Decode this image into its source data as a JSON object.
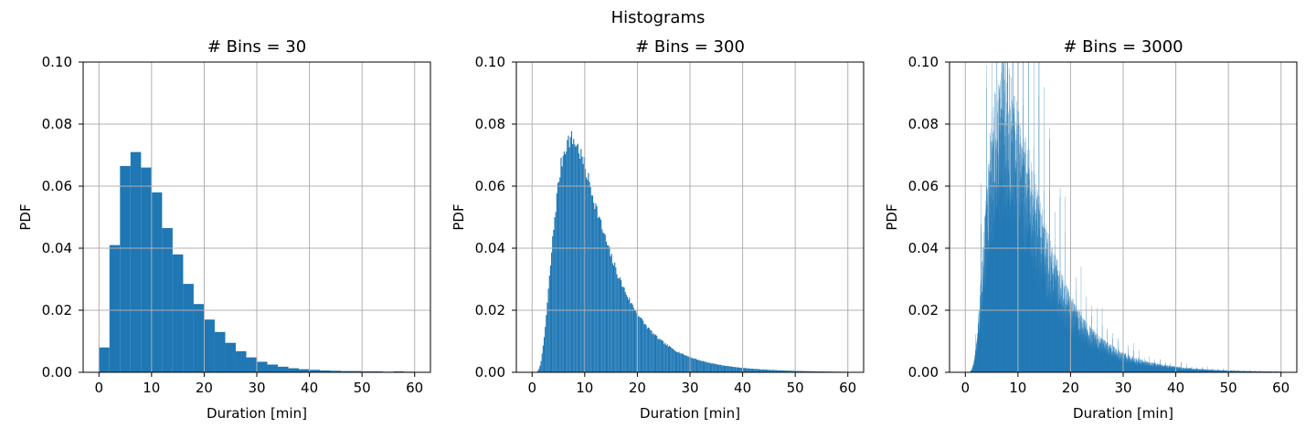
{
  "figure": {
    "suptitle": "Histograms"
  },
  "chart_data": [
    {
      "type": "bar",
      "title": "# Bins = 30",
      "xlabel": "Duration [min]",
      "ylabel": "PDF",
      "xlim": [
        -3,
        63
      ],
      "ylim": [
        0,
        0.1
      ],
      "xticks": [
        0,
        10,
        20,
        30,
        40,
        50,
        60
      ],
      "yticks": [
        "0.00",
        "0.02",
        "0.04",
        "0.06",
        "0.08",
        "0.10"
      ],
      "grid": true,
      "color": "#1f77b4",
      "bins": 30,
      "range": [
        0,
        60
      ],
      "values": [
        0.008,
        0.041,
        0.0665,
        0.071,
        0.066,
        0.058,
        0.0465,
        0.038,
        0.0285,
        0.022,
        0.017,
        0.013,
        0.0095,
        0.0068,
        0.0048,
        0.0034,
        0.0025,
        0.0018,
        0.0013,
        0.001,
        0.0008,
        0.0006,
        0.0005,
        0.0004,
        0.0004,
        0.0003,
        0.0003,
        0.0002,
        0.0003,
        0.0002
      ]
    },
    {
      "type": "bar",
      "title": "# Bins = 300",
      "xlabel": "Duration [min]",
      "ylabel": "PDF",
      "xlim": [
        -3,
        63
      ],
      "ylim": [
        0,
        0.1
      ],
      "xticks": [
        0,
        10,
        20,
        30,
        40,
        50,
        60
      ],
      "yticks": [
        "0.00",
        "0.02",
        "0.04",
        "0.06",
        "0.08",
        "0.10"
      ],
      "grid": true,
      "color": "#1f77b4",
      "bins": 300,
      "range": [
        0,
        60
      ],
      "seed": 7,
      "shape": "lognormal",
      "shape_mu": 2.36,
      "shape_sigma": 0.6,
      "noise": 0.04
    },
    {
      "type": "bar",
      "title": "# Bins = 3000",
      "xlabel": "Duration [min]",
      "ylabel": "PDF",
      "xlim": [
        -3,
        63
      ],
      "ylim": [
        0,
        0.1
      ],
      "xticks": [
        0,
        10,
        20,
        30,
        40,
        50,
        60
      ],
      "yticks": [
        "0.00",
        "0.02",
        "0.04",
        "0.06",
        "0.08",
        "0.10"
      ],
      "grid": true,
      "color": "#1f77b4",
      "bins": 3000,
      "range": [
        0,
        60
      ],
      "seed": 19,
      "shape": "lognormal",
      "shape_mu": 2.36,
      "shape_sigma": 0.6,
      "noise": 0.35,
      "spike_period": 1,
      "spike_gain": 0.9
    }
  ]
}
